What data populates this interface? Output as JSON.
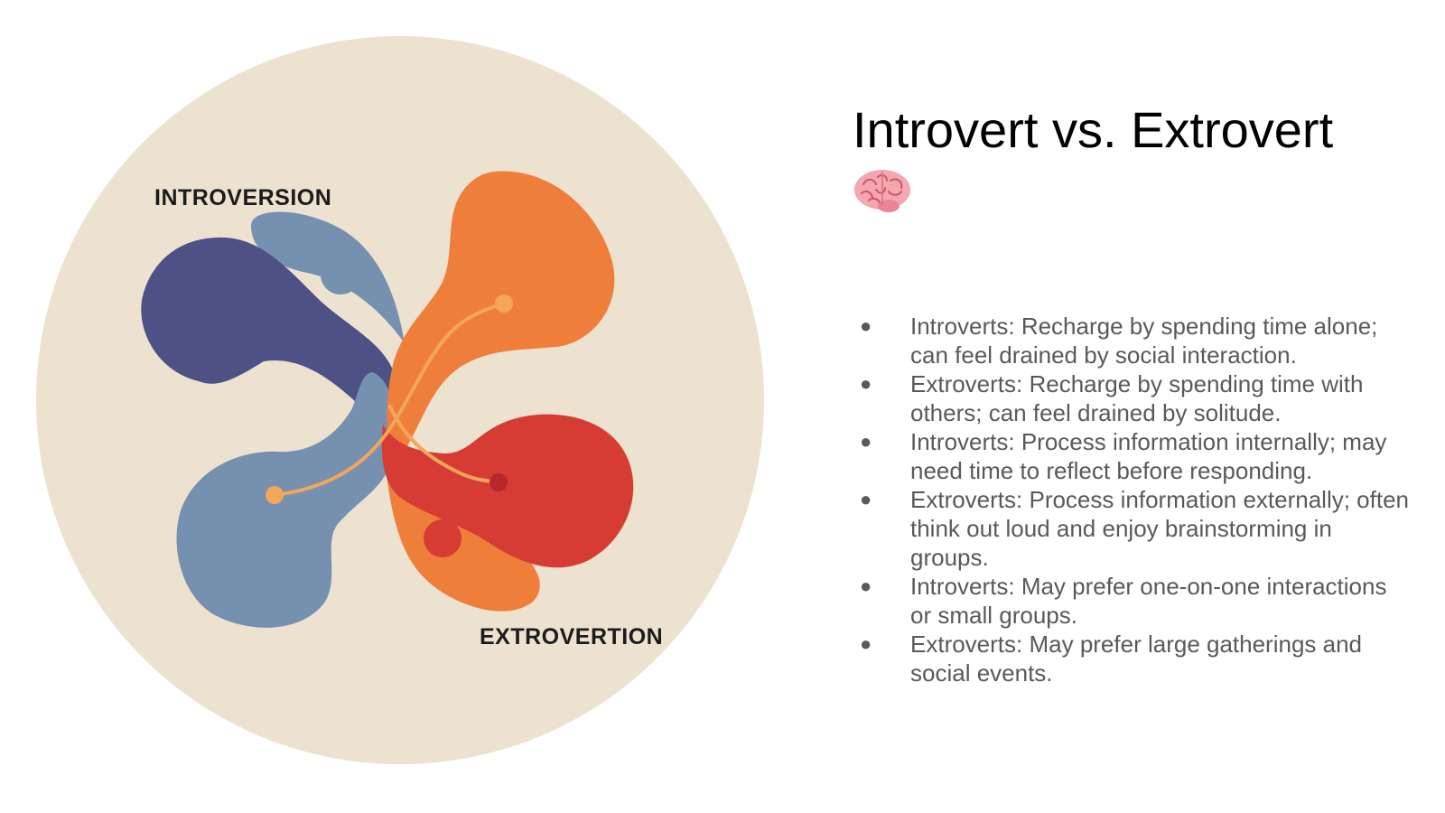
{
  "slide": {
    "title": "Introvert vs. Extrovert",
    "title_icon": "brain-icon",
    "illustration": {
      "label_top": "INTROVERSION",
      "label_bottom": "EXTROVERTION",
      "colors": {
        "background_circle": "#ECE2CF",
        "navy": "#4D5186",
        "steel_blue": "#7591AF",
        "orange": "#EF7E3B",
        "red": "#D63C33",
        "connector": "#F2A659",
        "dark_red_dot": "#B5272B"
      }
    },
    "bullets": [
      {
        "marker": "●",
        "text": "Introverts: Recharge by spending time alone; can feel drained by social interaction."
      },
      {
        "marker": "●",
        "text": "Extroverts: Recharge by spending time with others; can feel drained by solitude."
      },
      {
        "marker": "●",
        "text": "Introverts: Process information internally; may need time to reflect before responding."
      },
      {
        "marker": "●",
        "text": "Extroverts: Process information externally; often think out loud and enjoy brainstorming in groups."
      },
      {
        "marker": "●",
        "text": "Introverts: May prefer one-on-one interactions or small groups."
      },
      {
        "marker": "●",
        "text": "Extroverts: May prefer large gatherings and social events."
      }
    ],
    "text_color": "#595959",
    "title_color": "#000000"
  }
}
